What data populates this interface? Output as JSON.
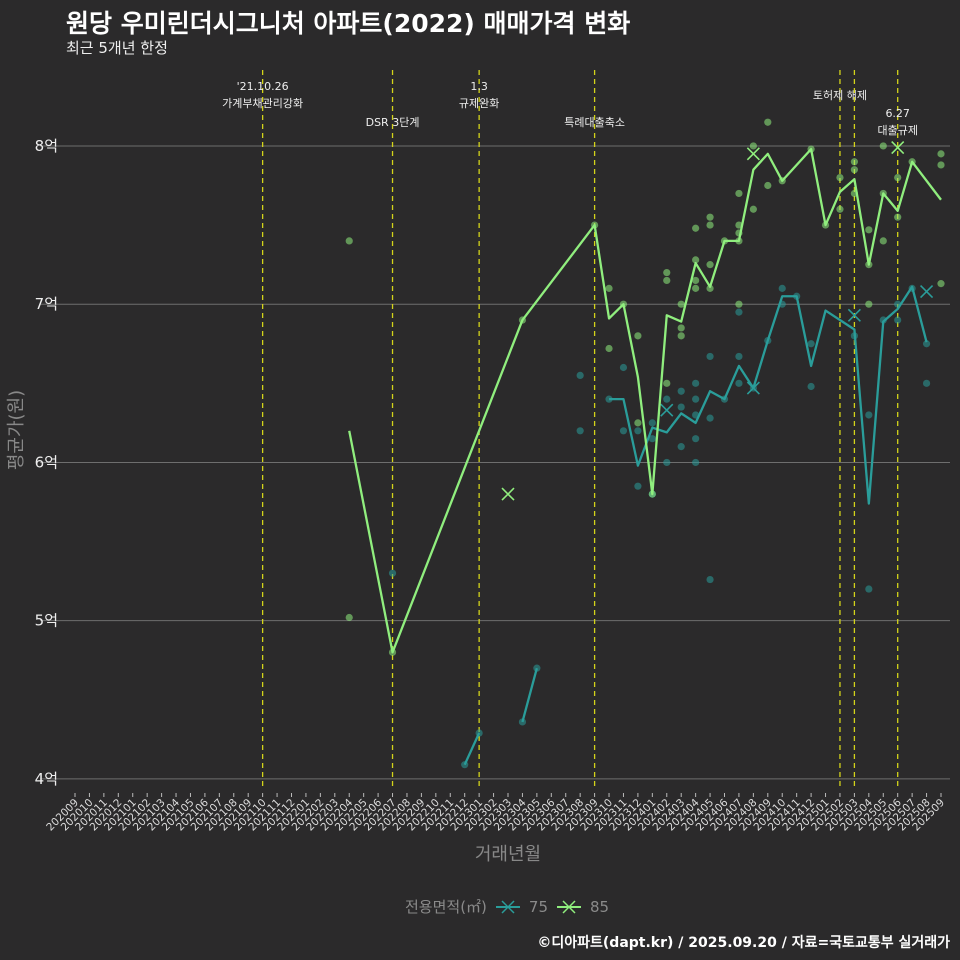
{
  "title": "원당 우미린더시그니처 아파트(2022) 매매가격 변화",
  "subtitle": "최근 5개년 한정",
  "footer": "©디아파트(dapt.kr) / 2025.09.20 / 자료=국토교통부 실거래가",
  "chart_data": {
    "type": "line",
    "xlabel": "거래년월",
    "ylabel": "평균가(원)",
    "ylim": [
      3.93,
      8.48
    ],
    "yticks": [
      {
        "v": 4,
        "label": "4억"
      },
      {
        "v": 5,
        "label": "5억"
      },
      {
        "v": 6,
        "label": "6억"
      },
      {
        "v": 7,
        "label": "7억"
      },
      {
        "v": 8,
        "label": "8억"
      }
    ],
    "categories": [
      "202009",
      "202010",
      "202011",
      "202012",
      "202101",
      "202102",
      "202103",
      "202104",
      "202105",
      "202106",
      "202107",
      "202108",
      "202109",
      "202110",
      "202111",
      "202112",
      "202201",
      "202202",
      "202203",
      "202204",
      "202205",
      "202206",
      "202207",
      "202208",
      "202209",
      "202210",
      "202211",
      "202212",
      "202301",
      "202302",
      "202303",
      "202304",
      "202305",
      "202306",
      "202307",
      "202308",
      "202309",
      "202310",
      "202311",
      "202312",
      "202401",
      "202402",
      "202403",
      "202404",
      "202405",
      "202406",
      "202407",
      "202408",
      "202409",
      "202410",
      "202411",
      "202412",
      "202501",
      "202502",
      "202503",
      "202504",
      "202505",
      "202506",
      "202507",
      "202508",
      "202509"
    ],
    "legend": {
      "title": "전용면적(㎡)",
      "placement": "bottom"
    },
    "series": [
      {
        "name": "75",
        "color": "#2a9d9a",
        "segments": [
          [
            [
              "202212",
              4.09
            ],
            [
              "202301",
              4.29
            ]
          ],
          [
            [
              "202304",
              4.36
            ],
            [
              "202305",
              4.7
            ]
          ],
          [
            [
              "202310",
              6.4
            ],
            [
              "202311",
              6.4
            ],
            [
              "202312",
              5.98
            ],
            [
              "202401",
              6.22
            ],
            [
              "202402",
              6.19
            ],
            [
              "202403",
              6.31
            ],
            [
              "202404",
              6.25
            ],
            [
              "202405",
              6.45
            ],
            [
              "202406",
              6.4
            ],
            [
              "202407",
              6.61
            ],
            [
              "202408",
              6.47
            ],
            [
              "202409",
              6.77
            ],
            [
              "202410",
              7.05
            ],
            [
              "202411",
              7.05
            ],
            [
              "202412",
              6.61
            ],
            [
              "202501",
              6.96
            ],
            [
              "202503",
              6.84
            ],
            [
              "202504",
              5.74
            ],
            [
              "202505",
              6.89
            ],
            [
              "202506",
              6.97
            ],
            [
              "202507",
              7.11
            ],
            [
              "202508",
              6.76
            ]
          ]
        ],
        "points": [
          [
            "202207",
            5.3
          ],
          [
            "202212",
            4.09
          ],
          [
            "202301",
            4.29
          ],
          [
            "202304",
            4.36
          ],
          [
            "202305",
            4.7
          ],
          [
            "202308",
            6.55
          ],
          [
            "202308",
            6.2
          ],
          [
            "202310",
            6.4
          ],
          [
            "202311",
            6.6
          ],
          [
            "202311",
            6.2
          ],
          [
            "202312",
            6.2
          ],
          [
            "202312",
            5.85
          ],
          [
            "202401",
            6.25
          ],
          [
            "202401",
            6.15
          ],
          [
            "202401",
            5.8
          ],
          [
            "202402",
            6.4
          ],
          [
            "202402",
            6.0
          ],
          [
            "202403",
            6.45
          ],
          [
            "202403",
            6.35
          ],
          [
            "202403",
            6.1
          ],
          [
            "202404",
            6.5
          ],
          [
            "202404",
            6.4
          ],
          [
            "202404",
            6.3
          ],
          [
            "202404",
            6.15
          ],
          [
            "202404",
            6.0
          ],
          [
            "202405",
            6.67
          ],
          [
            "202405",
            6.28
          ],
          [
            "202405",
            5.26
          ],
          [
            "202406",
            6.4
          ],
          [
            "202407",
            6.95
          ],
          [
            "202407",
            6.67
          ],
          [
            "202407",
            6.5
          ],
          [
            "202408",
            6.47
          ],
          [
            "202409",
            6.77
          ],
          [
            "202410",
            7.1
          ],
          [
            "202410",
            7.0
          ],
          [
            "202411",
            7.05
          ],
          [
            "202412",
            6.75
          ],
          [
            "202412",
            6.48
          ],
          [
            "202503",
            6.8
          ],
          [
            "202504",
            6.3
          ],
          [
            "202504",
            5.2
          ],
          [
            "202505",
            6.9
          ],
          [
            "202506",
            7.0
          ],
          [
            "202506",
            6.9
          ],
          [
            "202507",
            7.1
          ],
          [
            "202508",
            6.75
          ],
          [
            "202508",
            6.5
          ]
        ],
        "markers": [
          [
            "202402",
            6.33
          ],
          [
            "202408",
            6.47
          ],
          [
            "202503",
            6.93
          ],
          [
            "202508",
            7.08
          ]
        ]
      },
      {
        "name": "85",
        "color": "#90ee7e",
        "segments": [
          [
            [
              "202204",
              6.2
            ],
            [
              "202207",
              4.8
            ],
            [
              "202304",
              6.9
            ],
            [
              "202309",
              7.5
            ],
            [
              "202310",
              6.91
            ],
            [
              "202311",
              7.0
            ],
            [
              "202312",
              6.54
            ],
            [
              "202401",
              5.8
            ],
            [
              "202402",
              6.93
            ],
            [
              "202403",
              6.89
            ],
            [
              "202404",
              7.26
            ],
            [
              "202405",
              7.11
            ],
            [
              "202406",
              7.4
            ],
            [
              "202407",
              7.4
            ],
            [
              "202408",
              7.85
            ],
            [
              "202409",
              7.95
            ],
            [
              "202410",
              7.78
            ],
            [
              "202412",
              7.98
            ],
            [
              "202501",
              7.5
            ],
            [
              "202502",
              7.71
            ],
            [
              "202503",
              7.79
            ],
            [
              "202504",
              7.25
            ],
            [
              "202505",
              7.7
            ],
            [
              "202506",
              7.59
            ],
            [
              "202507",
              7.9
            ],
            [
              "202509",
              7.66
            ]
          ]
        ],
        "points": [
          [
            "202204",
            7.4
          ],
          [
            "202204",
            5.02
          ],
          [
            "202207",
            4.8
          ],
          [
            "202304",
            6.9
          ],
          [
            "202309",
            7.5
          ],
          [
            "202310",
            7.1
          ],
          [
            "202310",
            6.72
          ],
          [
            "202311",
            7.0
          ],
          [
            "202312",
            6.8
          ],
          [
            "202312",
            6.25
          ],
          [
            "202401",
            5.8
          ],
          [
            "202402",
            7.2
          ],
          [
            "202402",
            7.15
          ],
          [
            "202402",
            6.5
          ],
          [
            "202403",
            7.0
          ],
          [
            "202403",
            6.85
          ],
          [
            "202403",
            6.8
          ],
          [
            "202404",
            7.48
          ],
          [
            "202404",
            7.28
          ],
          [
            "202404",
            7.15
          ],
          [
            "202404",
            7.1
          ],
          [
            "202405",
            7.55
          ],
          [
            "202405",
            7.5
          ],
          [
            "202405",
            7.25
          ],
          [
            "202405",
            7.1
          ],
          [
            "202406",
            7.4
          ],
          [
            "202407",
            7.7
          ],
          [
            "202407",
            7.5
          ],
          [
            "202407",
            7.45
          ],
          [
            "202407",
            7.4
          ],
          [
            "202407",
            7.0
          ],
          [
            "202408",
            8.0
          ],
          [
            "202408",
            7.6
          ],
          [
            "202409",
            8.15
          ],
          [
            "202409",
            7.75
          ],
          [
            "202410",
            7.78
          ],
          [
            "202412",
            7.98
          ],
          [
            "202501",
            7.5
          ],
          [
            "202502",
            7.8
          ],
          [
            "202502",
            7.6
          ],
          [
            "202503",
            7.9
          ],
          [
            "202503",
            7.85
          ],
          [
            "202503",
            7.7
          ],
          [
            "202504",
            7.47
          ],
          [
            "202504",
            7.25
          ],
          [
            "202504",
            7.0
          ],
          [
            "202505",
            8.0
          ],
          [
            "202505",
            7.7
          ],
          [
            "202505",
            7.4
          ],
          [
            "202506",
            7.8
          ],
          [
            "202506",
            7.55
          ],
          [
            "202507",
            7.9
          ],
          [
            "202509",
            7.95
          ],
          [
            "202509",
            7.88
          ],
          [
            "202509",
            7.13
          ]
        ],
        "markers": [
          [
            "202303",
            5.8
          ],
          [
            "202408",
            7.95
          ],
          [
            "202506",
            7.99
          ]
        ]
      }
    ],
    "annotations": [
      {
        "at": "202110",
        "lines": [
          "'21.10.26",
          "가계부채관리강화"
        ],
        "level": "high"
      },
      {
        "at": "202207",
        "lines": [
          "DSR 3단계"
        ],
        "level": "low"
      },
      {
        "at": "202301",
        "lines": [
          "1.3",
          "규제완화"
        ],
        "level": "high"
      },
      {
        "at": "202309",
        "lines": [
          "특례대출축소"
        ],
        "level": "low"
      },
      {
        "at": "202502",
        "lines": [
          "토허제 해제"
        ],
        "level": "mid"
      },
      {
        "at": "202503",
        "lines": [],
        "level": "mid"
      },
      {
        "at": "202506",
        "lines": [
          "6.27",
          "대출규제"
        ],
        "level": "low2"
      }
    ]
  }
}
